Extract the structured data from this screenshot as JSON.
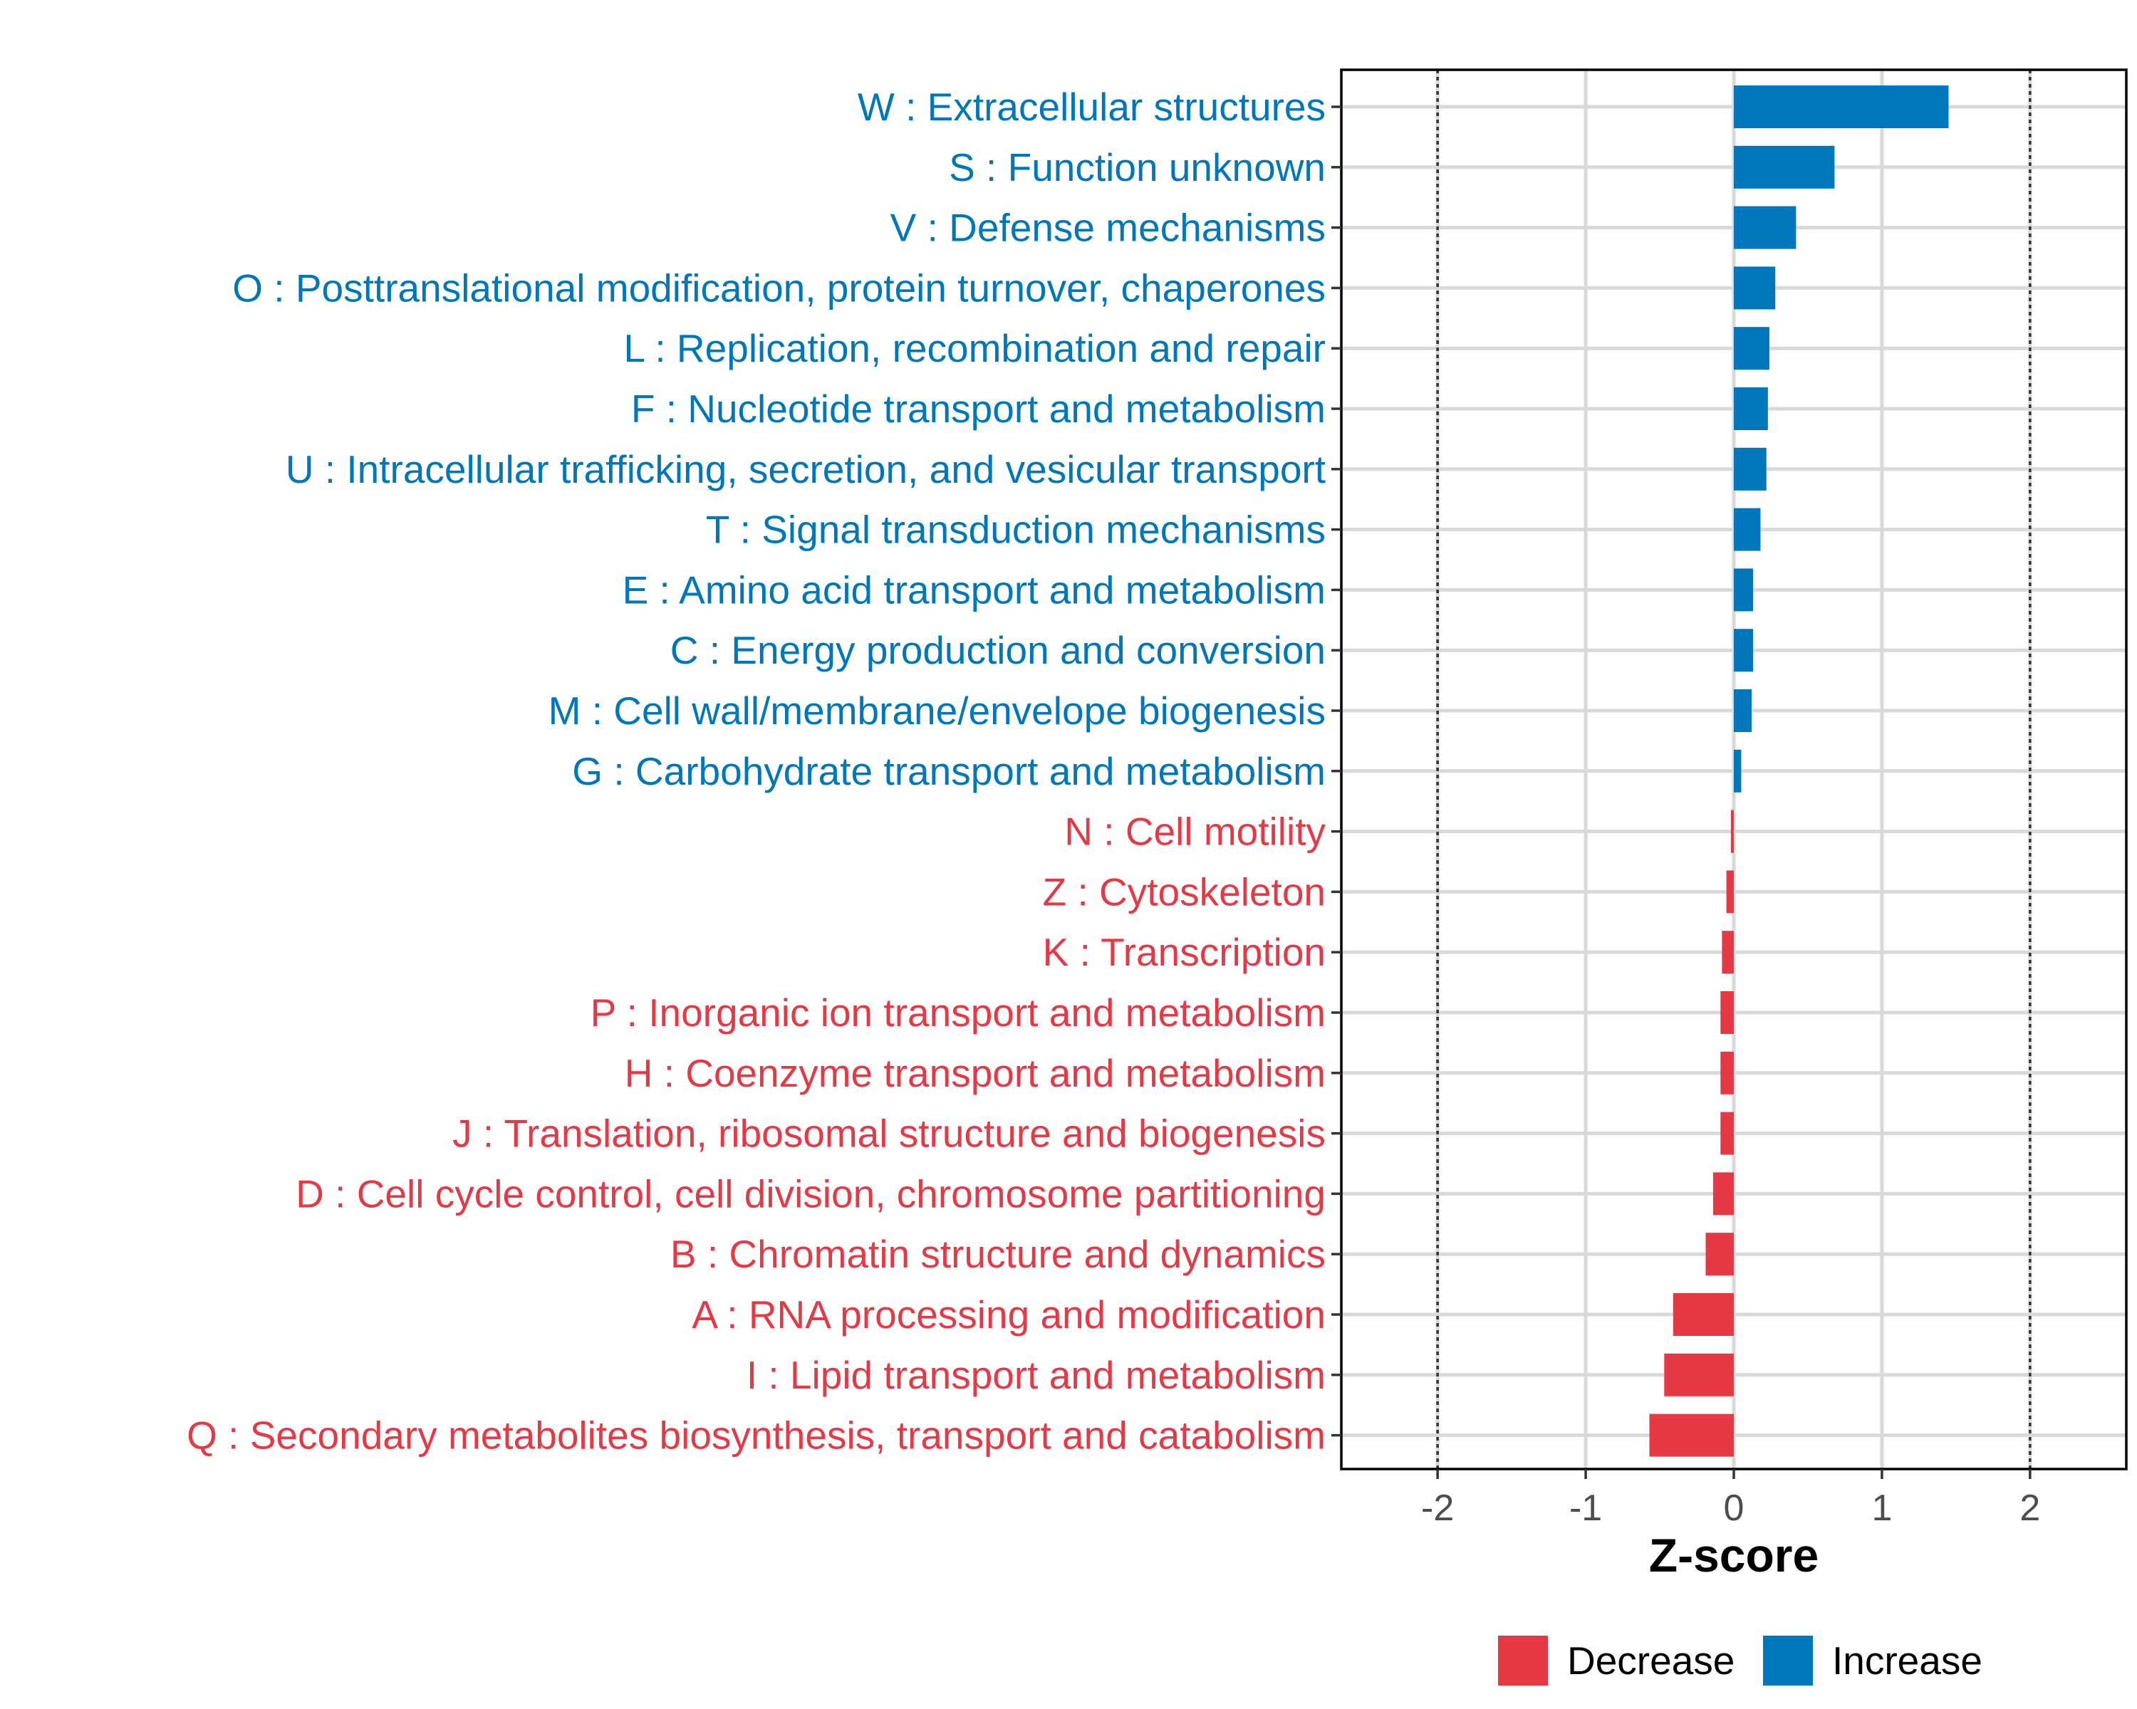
{
  "chart_data": {
    "type": "bar",
    "orientation": "horizontal",
    "xlabel": "Z-score",
    "xlim": [
      -2.65,
      2.65
    ],
    "xticks": [
      -2,
      -1,
      0,
      1,
      2
    ],
    "xtick_labels": [
      "-2",
      "-1",
      "0",
      "1",
      "2"
    ],
    "reference_lines": [
      -2,
      2
    ],
    "grid": true,
    "legend_position": "bottom",
    "legend": [
      {
        "key": "decrease",
        "label": "Decrease",
        "color": "#e63946"
      },
      {
        "key": "increase",
        "label": "Increase",
        "color": "#0077bb"
      }
    ],
    "categories": [
      {
        "label": "W : Extracellular structures",
        "value": 1.45,
        "group": "increase"
      },
      {
        "label": "S : Function unknown",
        "value": 0.68,
        "group": "increase"
      },
      {
        "label": "V : Defense mechanisms",
        "value": 0.42,
        "group": "increase"
      },
      {
        "label": "O : Posttranslational modification, protein turnover, chaperones",
        "value": 0.28,
        "group": "increase"
      },
      {
        "label": "L : Replication, recombination and repair",
        "value": 0.24,
        "group": "increase"
      },
      {
        "label": "F : Nucleotide transport and metabolism",
        "value": 0.23,
        "group": "increase"
      },
      {
        "label": "U : Intracellular trafficking, secretion, and vesicular transport",
        "value": 0.22,
        "group": "increase"
      },
      {
        "label": "T : Signal transduction mechanisms",
        "value": 0.18,
        "group": "increase"
      },
      {
        "label": "E : Amino acid transport and metabolism",
        "value": 0.13,
        "group": "increase"
      },
      {
        "label": "C : Energy production and conversion",
        "value": 0.13,
        "group": "increase"
      },
      {
        "label": "M : Cell wall/membrane/envelope biogenesis",
        "value": 0.12,
        "group": "increase"
      },
      {
        "label": "G : Carbohydrate transport and metabolism",
        "value": 0.05,
        "group": "increase"
      },
      {
        "label": "N : Cell motility",
        "value": -0.02,
        "group": "decrease"
      },
      {
        "label": "Z : Cytoskeleton",
        "value": -0.05,
        "group": "decrease"
      },
      {
        "label": "K : Transcription",
        "value": -0.08,
        "group": "decrease"
      },
      {
        "label": "P : Inorganic ion transport and metabolism",
        "value": -0.09,
        "group": "decrease"
      },
      {
        "label": "H : Coenzyme transport and metabolism",
        "value": -0.09,
        "group": "decrease"
      },
      {
        "label": "J : Translation, ribosomal structure and biogenesis",
        "value": -0.09,
        "group": "decrease"
      },
      {
        "label": "D : Cell cycle control, cell division, chromosome partitioning",
        "value": -0.14,
        "group": "decrease"
      },
      {
        "label": "B : Chromatin structure and dynamics",
        "value": -0.19,
        "group": "decrease"
      },
      {
        "label": "A : RNA processing and modification",
        "value": -0.41,
        "group": "decrease"
      },
      {
        "label": "I : Lipid transport and metabolism",
        "value": -0.47,
        "group": "decrease"
      },
      {
        "label": "Q : Secondary metabolites biosynthesis, transport and catabolism",
        "value": -0.57,
        "group": "decrease"
      }
    ]
  }
}
